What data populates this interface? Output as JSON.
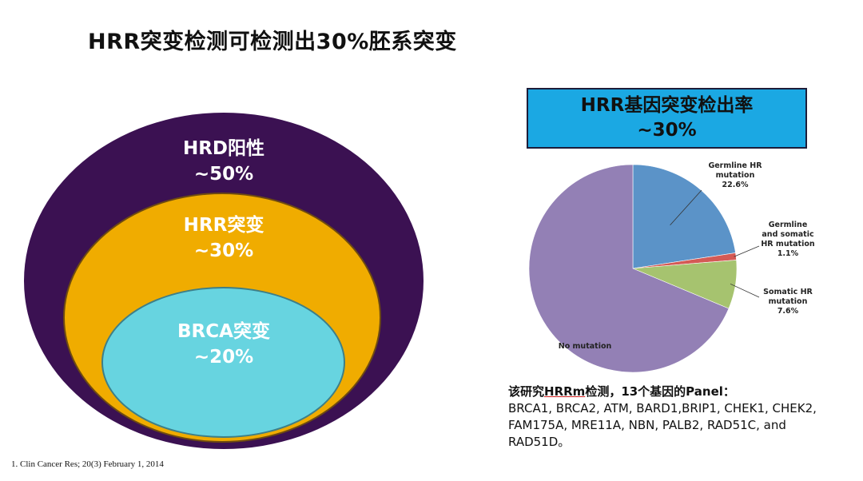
{
  "title": "HRR突变检测可检测出30%胚系突变",
  "venn": {
    "outer": {
      "line1": "HRD阳性",
      "line2": "~50%",
      "color": "#3b1152"
    },
    "middle": {
      "line1": "HRR突变",
      "line2": "~30%",
      "color": "#f0ac00"
    },
    "inner": {
      "line1": "BRCA突变",
      "line2": "~20%",
      "color": "#67d4e0"
    }
  },
  "rate_box": {
    "line1": "HRR基因突变检出率",
    "line2": "~30%",
    "color": "#1ba8e3"
  },
  "chart_data": [
    {
      "type": "pie",
      "title": "",
      "slices": [
        {
          "label_lines": [
            "Germline HR",
            "mutation",
            "22.6%"
          ],
          "value": 22.6,
          "color": "#5b93c8"
        },
        {
          "label_lines": [
            "Germline",
            "and somatic",
            "HR mutation",
            "1.1%"
          ],
          "value": 1.1,
          "color": "#d45a55"
        },
        {
          "label_lines": [
            "Somatic HR",
            "mutation",
            "7.6%"
          ],
          "value": 7.6,
          "color": "#a6c36f"
        },
        {
          "label_lines": [
            "No mutation"
          ],
          "value": 68.7,
          "color": "#9380b5"
        }
      ]
    }
  ],
  "panel": {
    "head_pre": "该研究",
    "head_hl": "HRRm",
    "head_post": "检测，13个基因的Panel：",
    "lines": [
      "BRCA1, BRCA2, ATM, BARD1,BRIP1, CHEK1, CHEK2,",
      "FAM175A, MRE11A, NBN, PALB2, RAD51C, and",
      "RAD51D。"
    ]
  },
  "footnote": "1. Clin Cancer Res; 20(3) February 1, 2014"
}
